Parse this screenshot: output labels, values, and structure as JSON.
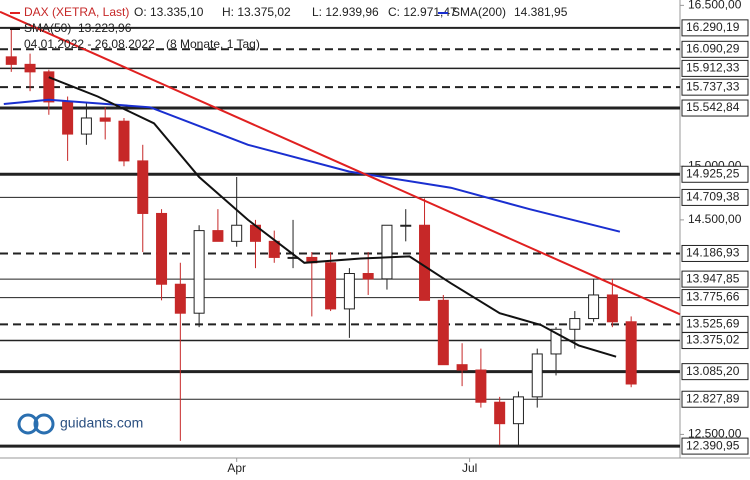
{
  "chart_data": {
    "type": "candlestick",
    "title": "DAX (XETRA, Last)",
    "ohlc_labels": [
      "O: 13.335,10",
      "H: 13.375,02",
      "L: 12.939,96",
      "C: 12.971,47"
    ],
    "period": "04.01.2022 - 26.08.2022",
    "period_note": "(8 Monate, 1 Tag)",
    "watermark": "guidants.com",
    "xlim": [
      -1,
      180
    ],
    "xticks": [
      {
        "value": 62,
        "label": "Apr"
      },
      {
        "value": 124,
        "label": "Jul"
      }
    ],
    "ylim": [
      12280,
      16550
    ],
    "yticks": [
      {
        "value": 16500,
        "label": "16.500,00"
      },
      {
        "value": 15000,
        "label": "15.000,00"
      },
      {
        "value": 14500,
        "label": "14.500,00"
      },
      {
        "value": 12500,
        "label": "12.500,00"
      }
    ],
    "up_color": "#ffffff",
    "down_color": "#c62828",
    "candles": {
      "x": [
        2,
        7,
        12,
        17,
        22,
        27,
        32,
        37,
        42,
        47,
        52,
        57,
        62,
        67,
        72,
        77,
        82,
        87,
        92,
        97,
        102,
        107,
        112,
        117,
        122,
        127,
        132,
        137,
        142,
        147,
        152,
        157,
        162,
        167
      ],
      "open": [
        16020,
        15950,
        15880,
        15600,
        15300,
        15450,
        15420,
        15050,
        14560,
        13900,
        13630,
        14400,
        14300,
        14450,
        14300,
        14150,
        14150,
        14100,
        13670,
        14000,
        13950,
        14450,
        14450,
        13750,
        13150,
        13100,
        12800,
        12600,
        12850,
        13250,
        13480,
        13580,
        13800,
        13550
      ],
      "high": [
        16285,
        16050,
        15900,
        15650,
        15600,
        15550,
        15450,
        15200,
        14600,
        14100,
        14450,
        14600,
        14900,
        14500,
        14400,
        14500,
        14200,
        14200,
        14050,
        14200,
        14450,
        14600,
        14700,
        13800,
        13350,
        13300,
        12850,
        12900,
        13300,
        13500,
        13650,
        13950,
        13950,
        13600
      ],
      "low": [
        15880,
        15700,
        15480,
        15050,
        15200,
        15250,
        15000,
        14200,
        13750,
        12440,
        13500,
        14300,
        14250,
        14050,
        14100,
        14050,
        13600,
        13650,
        13400,
        13800,
        13850,
        14300,
        14050,
        13150,
        12950,
        12750,
        12400,
        12400,
        12750,
        13050,
        13300,
        13550,
        13500,
        12940
      ],
      "close": [
        15950,
        15880,
        15600,
        15300,
        15450,
        15420,
        15050,
        14560,
        13900,
        13630,
        14400,
        14300,
        14450,
        14300,
        14150,
        14150,
        14100,
        13670,
        14000,
        13950,
        14450,
        14450,
        13750,
        13150,
        13100,
        12800,
        12600,
        12850,
        13250,
        13480,
        13580,
        13800,
        13550,
        12970
      ]
    },
    "series": [
      {
        "name": "SMA(200)",
        "last_label": "14.381,95",
        "color": "#1a2fd0",
        "x": [
          0,
          12,
          39,
          65,
          92,
          119,
          140,
          164
        ],
        "values": [
          15580,
          15620,
          15550,
          15200,
          14950,
          14800,
          14600,
          14390
        ]
      },
      {
        "name": "SMA(50)",
        "last_label": "13.223,96",
        "color": "#111111",
        "x": [
          12,
          25,
          40,
          52,
          65,
          80,
          95,
          108,
          119,
          132,
          143,
          153,
          163
        ],
        "values": [
          15830,
          15650,
          15400,
          14900,
          14500,
          14100,
          14140,
          14160,
          13910,
          13630,
          13520,
          13330,
          13224
        ]
      }
    ],
    "trendline": {
      "color": "#e02020",
      "x": [
        -1,
        180
      ],
      "values": [
        16440,
        13620
      ]
    },
    "levels": [
      {
        "value": 16290.19,
        "label": "16.290,19",
        "style": "solid",
        "width": 2
      },
      {
        "value": 16090.29,
        "label": "16.090,29",
        "style": "dashed",
        "width": 2
      },
      {
        "value": 15912.33,
        "label": "15.912,33",
        "style": "solid",
        "width": 1.5
      },
      {
        "value": 15737.33,
        "label": "15.737,33",
        "style": "dashed",
        "width": 2
      },
      {
        "value": 15542.84,
        "label": "15.542,84",
        "style": "solid",
        "width": 3
      },
      {
        "value": 14925.25,
        "label": "14.925,25",
        "style": "solid",
        "width": 3
      },
      {
        "value": 14709.38,
        "label": "14.709,38",
        "style": "solid",
        "width": 1
      },
      {
        "value": 14186.93,
        "label": "14.186,93",
        "style": "dashed",
        "width": 2
      },
      {
        "value": 13947.85,
        "label": "13.947,85",
        "style": "solid",
        "width": 1
      },
      {
        "value": 13775.66,
        "label": "13.775,66",
        "style": "solid",
        "width": 1
      },
      {
        "value": 13525.69,
        "label": "13.525,69",
        "style": "dashed",
        "width": 2
      },
      {
        "value": 13375.02,
        "label": "13.375,02",
        "style": "solid",
        "width": 1.5
      },
      {
        "value": 13085.2,
        "label": "13.085,20",
        "style": "solid",
        "width": 3
      },
      {
        "value": 12827.89,
        "label": "12.827,89",
        "style": "solid",
        "width": 1
      },
      {
        "value": 12390.95,
        "label": "12.390,95",
        "style": "solid",
        "width": 3
      }
    ]
  }
}
